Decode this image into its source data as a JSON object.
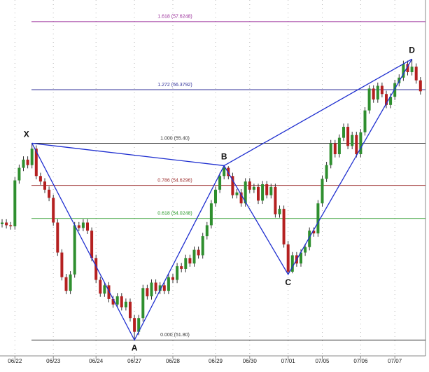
{
  "chart_data": {
    "type": "candlestick",
    "categories": [
      null,
      null,
      null,
      "06/22",
      null,
      null,
      null,
      null,
      null,
      null,
      null,
      null,
      "06/23",
      null,
      null,
      null,
      null,
      null,
      null,
      null,
      null,
      null,
      "06/24",
      null,
      null,
      null,
      null,
      null,
      null,
      null,
      null,
      "06/27",
      null,
      null,
      null,
      null,
      null,
      null,
      null,
      null,
      "06/28",
      null,
      null,
      null,
      null,
      null,
      null,
      null,
      null,
      null,
      "06/29",
      null,
      null,
      null,
      null,
      null,
      null,
      null,
      "06/30",
      null,
      null,
      null,
      null,
      null,
      null,
      null,
      null,
      "07/01",
      null,
      null,
      null,
      null,
      null,
      null,
      null,
      "07/05",
      null,
      null,
      null,
      null,
      null,
      null,
      null,
      null,
      "07/06",
      null,
      null,
      null,
      null,
      null,
      null,
      null,
      "07/07",
      null,
      null,
      null,
      null,
      null,
      null
    ],
    "open": [
      53.92,
      53.95,
      53.9,
      53.88,
      54.72,
      54.95,
      55.1,
      55.0,
      55.3,
      54.8,
      54.7,
      54.55,
      54.4,
      53.95,
      53.4,
      52.95,
      52.7,
      53.0,
      53.9,
      53.85,
      53.95,
      53.8,
      53.3,
      52.9,
      52.65,
      52.8,
      52.55,
      52.45,
      52.6,
      52.4,
      52.5,
      52.2,
      51.95,
      52.2,
      52.75,
      52.6,
      52.85,
      52.7,
      52.8,
      52.7,
      52.95,
      52.9,
      53.15,
      53.1,
      53.3,
      53.2,
      53.45,
      53.35,
      53.7,
      53.9,
      54.3,
      54.55,
      54.8,
      54.95,
      54.8,
      54.45,
      54.5,
      54.3,
      54.7,
      54.55,
      54.6,
      54.35,
      54.65,
      54.45,
      54.6,
      54.1,
      54.2,
      53.55,
      53.05,
      53.35,
      53.2,
      53.4,
      53.5,
      53.8,
      53.75,
      54.3,
      54.75,
      55.0,
      55.4,
      55.2,
      55.5,
      55.7,
      55.35,
      55.55,
      55.2,
      55.6,
      56.0,
      56.4,
      56.2,
      56.45,
      56.3,
      56.1,
      56.25,
      56.5,
      56.6,
      56.85,
      56.7,
      56.8,
      56.55
    ],
    "high": [
      54.01,
      54.01,
      53.96,
      54.78,
      55.01,
      55.16,
      55.16,
      55.4,
      55.36,
      54.86,
      54.76,
      54.61,
      54.46,
      54.01,
      53.46,
      53.01,
      53.06,
      53.96,
      53.96,
      54.01,
      54.01,
      53.86,
      53.36,
      52.96,
      52.86,
      52.86,
      52.61,
      52.66,
      52.66,
      52.56,
      52.56,
      52.26,
      52.26,
      52.81,
      52.81,
      52.91,
      52.91,
      52.86,
      52.86,
      53.01,
      53.01,
      53.21,
      53.21,
      53.36,
      53.36,
      53.51,
      53.51,
      53.76,
      53.96,
      54.36,
      54.61,
      54.86,
      54.99,
      54.98,
      54.86,
      54.56,
      54.56,
      54.76,
      54.76,
      54.66,
      54.66,
      54.71,
      54.71,
      54.66,
      54.66,
      54.26,
      54.26,
      53.61,
      53.41,
      53.41,
      53.46,
      53.56,
      53.86,
      53.86,
      54.36,
      54.81,
      55.06,
      55.46,
      55.46,
      55.56,
      55.76,
      55.76,
      55.61,
      55.61,
      55.66,
      56.06,
      56.46,
      56.46,
      56.51,
      56.51,
      56.36,
      56.31,
      56.56,
      56.66,
      56.91,
      56.91,
      56.94,
      56.86,
      56.61
    ],
    "low": [
      53.86,
      53.84,
      53.82,
      53.82,
      54.66,
      54.89,
      54.94,
      54.94,
      54.74,
      54.64,
      54.49,
      54.34,
      53.89,
      53.34,
      52.89,
      52.64,
      52.64,
      52.94,
      53.79,
      53.79,
      53.74,
      53.24,
      52.84,
      52.59,
      52.59,
      52.49,
      52.39,
      52.39,
      52.34,
      52.34,
      52.14,
      51.8,
      51.89,
      52.14,
      52.54,
      52.54,
      52.64,
      52.64,
      52.64,
      52.64,
      52.84,
      52.84,
      53.04,
      53.04,
      53.14,
      53.14,
      53.29,
      53.29,
      53.64,
      53.84,
      54.24,
      54.49,
      54.74,
      54.74,
      54.39,
      54.39,
      54.24,
      54.24,
      54.49,
      54.49,
      54.29,
      54.29,
      54.39,
      54.39,
      54.04,
      54.04,
      53.49,
      53.0,
      53.02,
      53.14,
      53.14,
      53.34,
      53.44,
      53.69,
      53.69,
      54.24,
      54.69,
      54.94,
      55.14,
      55.14,
      55.44,
      55.29,
      55.29,
      55.14,
      55.14,
      55.54,
      55.94,
      56.14,
      56.14,
      56.24,
      56.04,
      56.04,
      56.19,
      56.44,
      56.54,
      56.64,
      56.64,
      56.49,
      56.29
    ],
    "close": [
      53.95,
      53.9,
      53.88,
      54.72,
      54.95,
      55.1,
      55.0,
      55.3,
      54.8,
      54.7,
      54.55,
      54.4,
      53.95,
      53.4,
      52.95,
      52.7,
      53.0,
      53.9,
      53.85,
      53.95,
      53.8,
      53.3,
      52.9,
      52.65,
      52.8,
      52.55,
      52.45,
      52.6,
      52.4,
      52.5,
      52.2,
      51.95,
      52.2,
      52.75,
      52.6,
      52.85,
      52.7,
      52.8,
      52.7,
      52.95,
      52.9,
      53.15,
      53.1,
      53.3,
      53.2,
      53.45,
      53.35,
      53.7,
      53.9,
      54.3,
      54.55,
      54.8,
      54.95,
      54.8,
      54.45,
      54.5,
      54.3,
      54.7,
      54.55,
      54.6,
      54.35,
      54.65,
      54.45,
      54.6,
      54.1,
      54.2,
      53.55,
      53.05,
      53.35,
      53.2,
      53.4,
      53.5,
      53.8,
      53.75,
      54.3,
      54.75,
      55.0,
      55.4,
      55.2,
      55.5,
      55.7,
      55.35,
      55.55,
      55.2,
      55.6,
      56.0,
      56.4,
      56.2,
      56.45,
      56.3,
      56.1,
      56.25,
      56.5,
      56.6,
      56.85,
      56.7,
      56.8,
      56.55,
      56.35
    ],
    "up_color": "#2f8f2f",
    "down_color": "#b52020",
    "ylim": [
      51.51,
      58.02
    ],
    "grid": true,
    "fib_levels": [
      {
        "label": "1.618 (57.6248)",
        "price": 57.6248,
        "color": "#9a2f9a"
      },
      {
        "label": "1.272 (56.3792)",
        "price": 56.3792,
        "color": "#30309a"
      },
      {
        "label": "1.000 (55.40)",
        "price": 55.4,
        "color": "#333333"
      },
      {
        "label": "0.786 (54.6296)",
        "price": 54.6296,
        "color": "#a03535"
      },
      {
        "label": "0.618 (54.0248)",
        "price": 54.0248,
        "color": "#2a9a2a"
      },
      {
        "label": "0.000 (51.80)",
        "price": 51.8,
        "color": "#333333"
      }
    ],
    "pattern_color": "#1f2fd0",
    "pattern": [
      {
        "label": "X",
        "index": 7,
        "price": 55.4
      },
      {
        "label": "A",
        "index": 31,
        "price": 51.8
      },
      {
        "label": "B",
        "index": 52,
        "price": 54.99
      },
      {
        "label": "C",
        "index": 67,
        "price": 53.0
      },
      {
        "label": "D",
        "index": 96,
        "price": 56.94
      }
    ]
  }
}
